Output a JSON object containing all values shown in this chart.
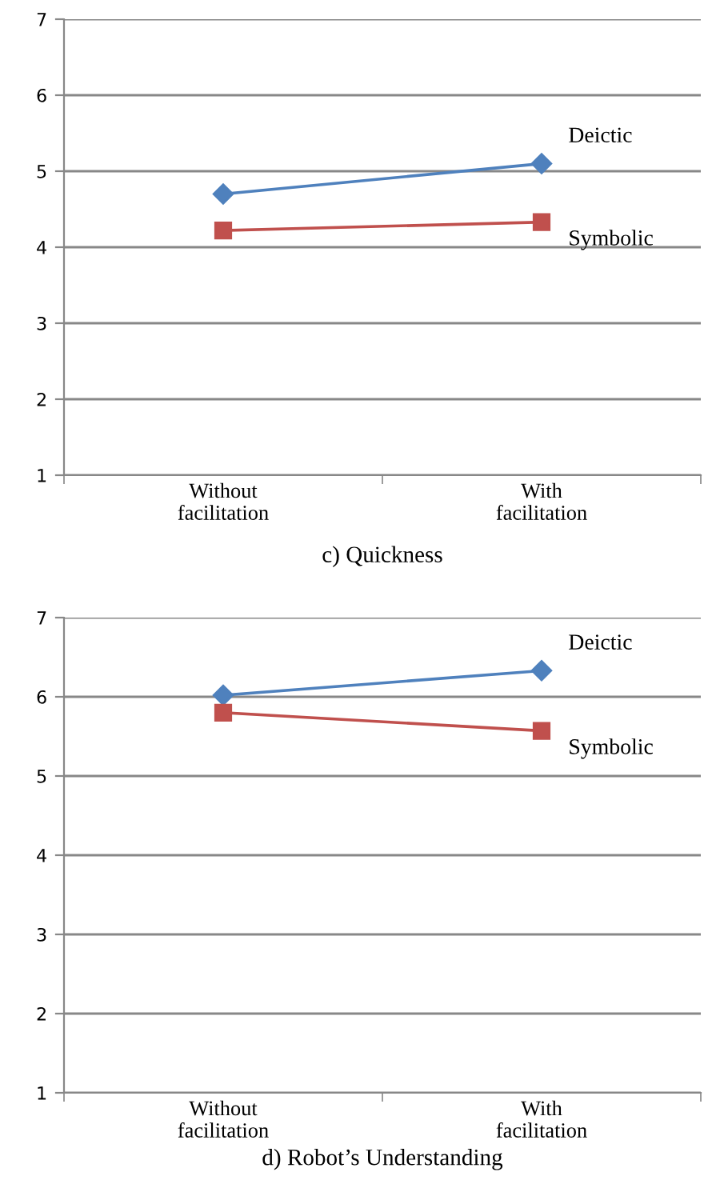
{
  "chart_data": [
    {
      "type": "line",
      "title": "c) Quickness",
      "categories": [
        "Without\nfacilitation",
        "With\nfacilitation"
      ],
      "series": [
        {
          "name": "Deictic",
          "color": "#4f81bd",
          "marker": "diamond",
          "values": [
            4.7,
            5.1
          ]
        },
        {
          "name": "Symbolic",
          "color": "#c0504d",
          "marker": "square",
          "values": [
            4.22,
            4.33
          ]
        }
      ],
      "ylim": [
        1,
        7
      ],
      "yticks": [
        1,
        2,
        3,
        4,
        5,
        6,
        7
      ],
      "grid": "y",
      "legend": false
    },
    {
      "type": "line",
      "title": "d) Robot’s Understanding",
      "categories": [
        "Without\nfacilitation",
        "With\nfacilitation"
      ],
      "series": [
        {
          "name": "Deictic",
          "color": "#4f81bd",
          "marker": "diamond",
          "values": [
            6.02,
            6.33
          ]
        },
        {
          "name": "Symbolic",
          "color": "#c0504d",
          "marker": "square",
          "values": [
            5.8,
            5.57
          ]
        }
      ],
      "ylim": [
        1,
        7
      ],
      "yticks": [
        1,
        2,
        3,
        4,
        5,
        6,
        7
      ],
      "grid": "y",
      "legend": false
    }
  ]
}
